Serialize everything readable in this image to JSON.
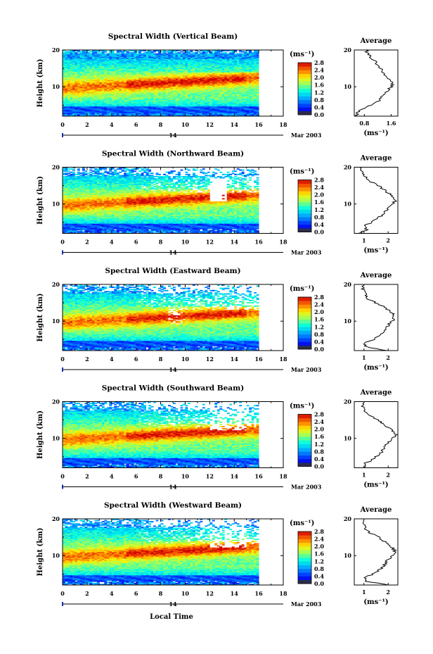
{
  "figure": {
    "xlabel": "Local Time",
    "date_label": "Mar 2003",
    "date_day": "14",
    "height_label": "Height (km)",
    "unit_label": "(ms⁻¹)",
    "average_title": "Average"
  },
  "chart_data": [
    {
      "type": "heatmap",
      "title": "Spectral Width (Vertical Beam)",
      "xlabel": "Local Time",
      "ylabel": "Height (km)",
      "xlim": [
        0,
        18
      ],
      "ylim": [
        2,
        20
      ],
      "data_xlim": [
        0,
        16
      ],
      "x_ticks": [
        "0",
        "2",
        "4",
        "6",
        "8",
        "10",
        "12",
        "14",
        "16",
        "18"
      ],
      "y_ticks": [
        "10",
        "20"
      ],
      "colorbar": {
        "label": "(ms⁻¹)",
        "range": [
          0,
          2.8
        ],
        "ticks": [
          "2.8",
          "2.4",
          "2.0",
          "1.6",
          "1.2",
          "0.8",
          "0.4",
          "0.0"
        ]
      },
      "average": {
        "title": "Average",
        "xlabel": "(ms⁻¹)",
        "xlim": [
          0.5,
          1.8
        ],
        "x_ticks": [
          "0.8",
          "1.6"
        ],
        "y_ticks": [
          "10",
          "20"
        ],
        "profile": [
          [
            0.55,
            2
          ],
          [
            0.6,
            3
          ],
          [
            0.75,
            4
          ],
          [
            1.0,
            5
          ],
          [
            1.2,
            6
          ],
          [
            1.3,
            7
          ],
          [
            1.4,
            8
          ],
          [
            1.5,
            9
          ],
          [
            1.6,
            10
          ],
          [
            1.65,
            11
          ],
          [
            1.55,
            12
          ],
          [
            1.4,
            13
          ],
          [
            1.35,
            14
          ],
          [
            1.3,
            15
          ],
          [
            1.2,
            16
          ],
          [
            1.1,
            17
          ],
          [
            1.0,
            18
          ],
          [
            0.9,
            19
          ],
          [
            0.85,
            20
          ]
        ]
      }
    },
    {
      "type": "heatmap",
      "title": "Spectral Width (Northward Beam)",
      "xlabel": "Local Time",
      "ylabel": "Height (km)",
      "xlim": [
        0,
        18
      ],
      "ylim": [
        2,
        20
      ],
      "data_xlim": [
        0,
        16
      ],
      "x_ticks": [
        "0",
        "2",
        "4",
        "6",
        "8",
        "10",
        "12",
        "14",
        "16",
        "18"
      ],
      "y_ticks": [
        "10",
        "20"
      ],
      "colorbar": {
        "label": "(ms⁻¹)",
        "range": [
          0,
          2.8
        ],
        "ticks": [
          "2.8",
          "2.4",
          "2.0",
          "1.6",
          "1.2",
          "0.8",
          "0.4",
          "0.0"
        ]
      },
      "average": {
        "title": "Average",
        "xlabel": "(ms⁻¹)",
        "xlim": [
          0.6,
          2.4
        ],
        "x_ticks": [
          "1",
          "2"
        ],
        "y_ticks": [
          "10",
          "20"
        ],
        "profile": [
          [
            0.8,
            2
          ],
          [
            1.1,
            3
          ],
          [
            1.0,
            4
          ],
          [
            1.3,
            5
          ],
          [
            1.5,
            6
          ],
          [
            1.8,
            7
          ],
          [
            1.9,
            8
          ],
          [
            2.0,
            9
          ],
          [
            2.2,
            10
          ],
          [
            2.3,
            11
          ],
          [
            2.2,
            12
          ],
          [
            2.0,
            13
          ],
          [
            1.8,
            14
          ],
          [
            1.6,
            15
          ],
          [
            1.3,
            16
          ],
          [
            1.1,
            17
          ],
          [
            0.95,
            18
          ],
          [
            0.9,
            19
          ],
          [
            0.9,
            20
          ]
        ]
      }
    },
    {
      "type": "heatmap",
      "title": "Spectral Width (Eastward Beam)",
      "xlabel": "Local Time",
      "ylabel": "Height (km)",
      "xlim": [
        0,
        18
      ],
      "ylim": [
        2,
        20
      ],
      "data_xlim": [
        0,
        16
      ],
      "x_ticks": [
        "0",
        "2",
        "4",
        "6",
        "8",
        "10",
        "12",
        "14",
        "16",
        "18"
      ],
      "y_ticks": [
        "10",
        "20"
      ],
      "colorbar": {
        "label": "(ms⁻¹)",
        "range": [
          0,
          2.8
        ],
        "ticks": [
          "2.8",
          "2.4",
          "2.0",
          "1.6",
          "1.2",
          "0.8",
          "0.4",
          "0.0"
        ]
      },
      "average": {
        "title": "Average",
        "xlabel": "(ms⁻¹)",
        "xlim": [
          0.6,
          2.4
        ],
        "x_ticks": [
          "1",
          "2"
        ],
        "y_ticks": [
          "10",
          "20"
        ],
        "profile": [
          [
            1.9,
            2
          ],
          [
            1.1,
            3
          ],
          [
            1.0,
            4
          ],
          [
            1.4,
            5
          ],
          [
            1.6,
            6
          ],
          [
            1.8,
            7
          ],
          [
            1.9,
            8
          ],
          [
            2.0,
            9
          ],
          [
            2.2,
            10
          ],
          [
            2.25,
            11
          ],
          [
            2.2,
            12
          ],
          [
            2.0,
            13
          ],
          [
            1.8,
            14
          ],
          [
            1.5,
            15
          ],
          [
            1.2,
            16
          ],
          [
            1.1,
            17
          ],
          [
            1.0,
            18
          ],
          [
            0.95,
            19
          ],
          [
            1.0,
            20
          ]
        ]
      }
    },
    {
      "type": "heatmap",
      "title": "Spectral Width (Southward Beam)",
      "xlabel": "Local Time",
      "ylabel": "Height (km)",
      "xlim": [
        0,
        18
      ],
      "ylim": [
        2,
        20
      ],
      "data_xlim": [
        0,
        16
      ],
      "x_ticks": [
        "0",
        "2",
        "4",
        "6",
        "8",
        "10",
        "12",
        "14",
        "16",
        "18"
      ],
      "y_ticks": [
        "10",
        "20"
      ],
      "colorbar": {
        "label": "(ms⁻¹)",
        "range": [
          0,
          2.8
        ],
        "ticks": [
          "2.8",
          "2.4",
          "2.0",
          "1.6",
          "1.2",
          "0.8",
          "0.4",
          "0.0"
        ]
      },
      "average": {
        "title": "Average",
        "xlabel": "(ms⁻¹)",
        "xlim": [
          0.6,
          2.4
        ],
        "x_ticks": [
          "1",
          "2"
        ],
        "y_ticks": [
          "10",
          "20"
        ],
        "profile": [
          [
            1.1,
            2
          ],
          [
            1.0,
            3
          ],
          [
            1.3,
            4
          ],
          [
            1.5,
            5
          ],
          [
            1.7,
            6
          ],
          [
            1.8,
            7
          ],
          [
            1.9,
            8
          ],
          [
            2.0,
            9
          ],
          [
            2.2,
            10
          ],
          [
            2.3,
            11
          ],
          [
            2.2,
            12
          ],
          [
            2.0,
            13
          ],
          [
            1.8,
            14
          ],
          [
            1.6,
            15
          ],
          [
            1.3,
            16
          ],
          [
            1.1,
            17
          ],
          [
            1.0,
            18
          ],
          [
            0.95,
            19
          ],
          [
            1.0,
            20
          ]
        ]
      }
    },
    {
      "type": "heatmap",
      "title": "Spectral Width (Westward Beam)",
      "xlabel": "Local Time",
      "ylabel": "Height (km)",
      "xlim": [
        0,
        18
      ],
      "ylim": [
        2,
        20
      ],
      "data_xlim": [
        0,
        16
      ],
      "x_ticks": [
        "0",
        "2",
        "4",
        "6",
        "8",
        "10",
        "12",
        "14",
        "16",
        "18"
      ],
      "y_ticks": [
        "10",
        "20"
      ],
      "colorbar": {
        "label": "(ms⁻¹)",
        "range": [
          0,
          2.8
        ],
        "ticks": [
          "2.8",
          "2.4",
          "2.0",
          "1.6",
          "1.2",
          "0.8",
          "0.4",
          "0.0"
        ]
      },
      "average": {
        "title": "Average",
        "xlabel": "(ms⁻¹)",
        "xlim": [
          0.6,
          2.4
        ],
        "x_ticks": [
          "1",
          "2"
        ],
        "y_ticks": [
          "10",
          "20"
        ],
        "profile": [
          [
            2.0,
            2
          ],
          [
            1.1,
            3
          ],
          [
            1.0,
            4
          ],
          [
            1.4,
            5
          ],
          [
            1.6,
            6
          ],
          [
            1.8,
            7
          ],
          [
            1.9,
            8
          ],
          [
            2.0,
            9
          ],
          [
            2.2,
            10
          ],
          [
            2.3,
            11
          ],
          [
            2.2,
            12
          ],
          [
            2.0,
            13
          ],
          [
            1.8,
            14
          ],
          [
            1.6,
            15
          ],
          [
            1.3,
            16
          ],
          [
            1.1,
            17
          ],
          [
            1.0,
            18
          ],
          [
            0.95,
            19
          ],
          [
            1.0,
            20
          ]
        ]
      }
    }
  ]
}
